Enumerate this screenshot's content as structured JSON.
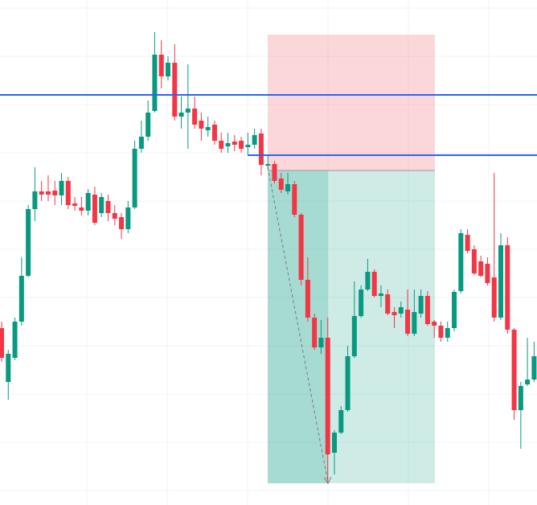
{
  "chart_data": {
    "type": "candlestick",
    "ylim": [
      372,
      1000
    ],
    "up_color": "#089981",
    "down_color": "#f23645",
    "open": [
      592,
      525,
      555,
      600,
      657,
      740,
      762,
      762,
      763,
      757,
      775,
      747,
      742,
      738,
      758,
      735,
      750,
      735,
      730,
      715,
      742,
      815,
      830,
      862,
      932,
      905,
      922,
      855,
      860,
      865,
      850,
      838,
      845,
      825,
      818,
      824,
      825,
      817,
      820,
      834,
      794,
      796,
      778,
      762,
      771,
      733,
      652,
      605,
      568,
      580,
      437,
      462,
      490,
      557,
      607,
      640,
      662,
      632,
      634,
      612,
      610,
      615,
      585,
      610,
      632,
      600,
      595,
      580,
      592,
      638,
      708,
      690,
      675,
      672,
      655,
      605,
      695,
      590,
      490,
      522,
      528
    ],
    "high": [
      600,
      565,
      605,
      680,
      745,
      792,
      775,
      782,
      775,
      785,
      780,
      755,
      755,
      765,
      768,
      760,
      758,
      745,
      735,
      750,
      825,
      850,
      875,
      960,
      950,
      930,
      945,
      880,
      920,
      880,
      860,
      855,
      850,
      835,
      835,
      832,
      830,
      835,
      840,
      840,
      808,
      800,
      785,
      785,
      775,
      735,
      680,
      610,
      602,
      605,
      465,
      495,
      570,
      650,
      645,
      678,
      665,
      645,
      640,
      618,
      625,
      640,
      640,
      640,
      638,
      602,
      600,
      600,
      640,
      715,
      715,
      695,
      682,
      680,
      785,
      710,
      705,
      592,
      525,
      580,
      575
    ],
    "low": [
      550,
      503,
      552,
      595,
      655,
      725,
      750,
      750,
      745,
      745,
      740,
      738,
      732,
      732,
      720,
      730,
      725,
      720,
      703,
      710,
      740,
      810,
      825,
      860,
      890,
      900,
      850,
      840,
      815,
      840,
      825,
      830,
      820,
      810,
      810,
      812,
      810,
      808,
      815,
      782,
      790,
      772,
      760,
      758,
      730,
      645,
      600,
      565,
      560,
      400,
      410,
      460,
      488,
      555,
      605,
      638,
      630,
      618,
      608,
      592,
      605,
      582,
      582,
      605,
      595,
      580,
      575,
      575,
      588,
      635,
      685,
      658,
      655,
      645,
      600,
      602,
      585,
      478,
      442,
      520,
      525
    ],
    "close": [
      555,
      560,
      600,
      657,
      740,
      762,
      758,
      758,
      757,
      775,
      745,
      744,
      738,
      760,
      723,
      755,
      735,
      728,
      715,
      742,
      815,
      830,
      860,
      932,
      905,
      922,
      855,
      860,
      865,
      845,
      840,
      842,
      825,
      815,
      822,
      820,
      815,
      820,
      832,
      795,
      796,
      775,
      764,
      771,
      733,
      652,
      605,
      568,
      580,
      435,
      462,
      490,
      557,
      607,
      640,
      662,
      632,
      635,
      610,
      608,
      618,
      585,
      612,
      632,
      597,
      595,
      580,
      592,
      637,
      710,
      688,
      660,
      657,
      648,
      605,
      695,
      590,
      490,
      520,
      528,
      557
    ]
  }
}
